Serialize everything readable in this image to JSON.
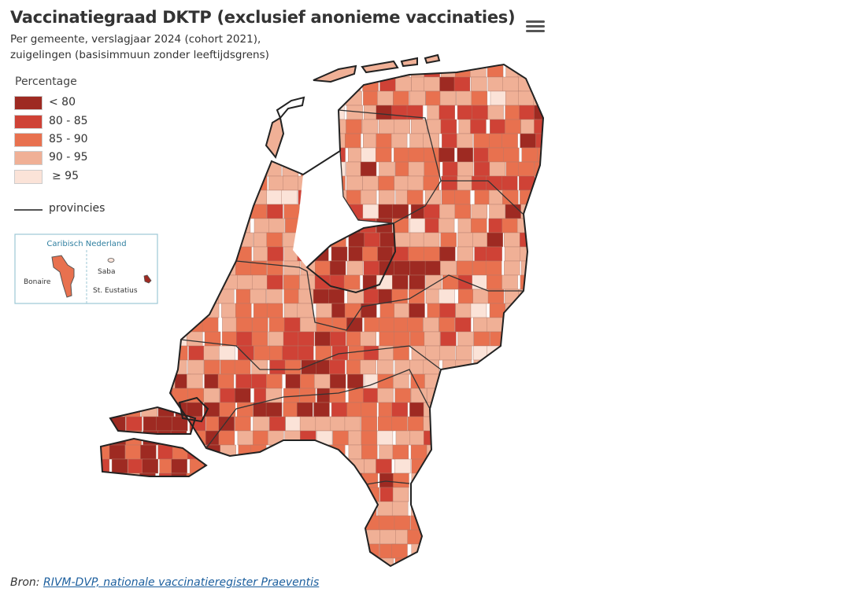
{
  "title": "Vaccinatiegraad DKTP (exclusief anonieme vaccinaties)",
  "subtitle_lines": [
    "Per gemeente, verslagjaar 2024 (cohort 2021),",
    "zuigelingen (basisimmuun zonder leeftijdsgrens)"
  ],
  "menu_icon": "hamburger-menu-icon",
  "legend": {
    "title": "Percentage",
    "classes": [
      {
        "label": "< 80",
        "color": "#9e2a22"
      },
      {
        "label": "80 - 85",
        "color": "#cf4236"
      },
      {
        "label": "85 - 90",
        "color": "#e8714f"
      },
      {
        "label": "90 - 95",
        "color": "#f0b096"
      },
      {
        "label": "≥ 95",
        "color": "#fbe3d8"
      }
    ],
    "line_label": "provincies"
  },
  "inset": {
    "title": "Caribisch Nederland",
    "islands": [
      {
        "name": "Bonaire",
        "class": "85 - 90"
      },
      {
        "name": "Saba",
        "class": "≥ 95"
      },
      {
        "name": "St. Eustatius",
        "class": "< 80"
      }
    ]
  },
  "source": {
    "prefix": "Bron: ",
    "link_text": "RIVM-DVP, nationale vaccinatieregister Praeventis"
  }
}
